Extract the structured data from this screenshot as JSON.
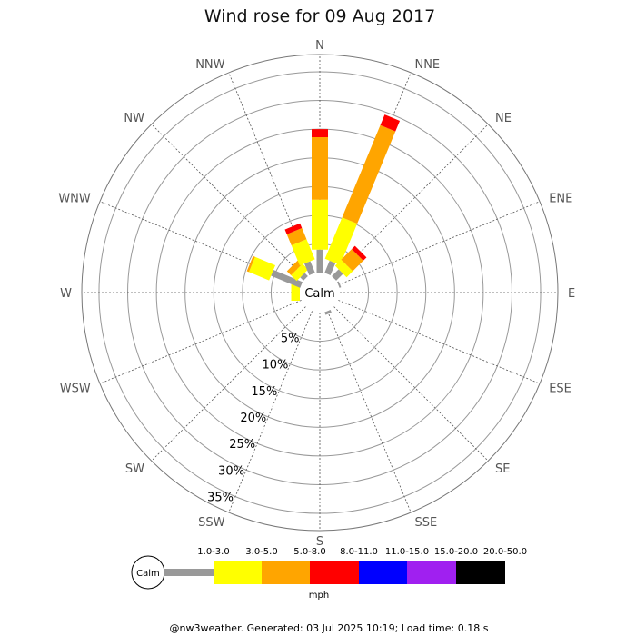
{
  "chart_data": {
    "type": "wind-rose",
    "title": "Wind rose for 09 Aug 2017",
    "center_label": "Calm",
    "directions": [
      "N",
      "NNE",
      "NE",
      "ENE",
      "E",
      "ESE",
      "SE",
      "SSE",
      "S",
      "SSW",
      "SW",
      "WSW",
      "W",
      "WNW",
      "NW",
      "NNW"
    ],
    "radial_unit": "percent",
    "radial_ticks": [
      5,
      10,
      15,
      20,
      25,
      30,
      35
    ],
    "radial_tick_labels": [
      "5%",
      "10%",
      "15%",
      "20%",
      "25%",
      "30%",
      "35%"
    ],
    "rmax": 38,
    "grid": true,
    "speed_bins": [
      "1.0-3.0",
      "3.0-5.0",
      "5.0-8.0",
      "8.0-11.0",
      "11.0-15.0",
      "15.0-20.0",
      "20.0-50.0"
    ],
    "speed_unit": "mph",
    "colors": [
      "#999999",
      "#ffff00",
      "#ffa500",
      "#ff0000",
      "#0000ff",
      "#a020f0",
      "#000000"
    ],
    "series": [
      {
        "direction": "N",
        "values": [
          4.0,
          8.7,
          10.9,
          1.4,
          0,
          0,
          0
        ]
      },
      {
        "direction": "NNE",
        "values": [
          2.3,
          7.8,
          17.4,
          2.0,
          0,
          0,
          0
        ]
      },
      {
        "direction": "NE",
        "values": [
          1.7,
          1.5,
          2.6,
          0.8,
          0,
          0,
          0
        ]
      },
      {
        "direction": "ENE",
        "values": [
          0.3,
          0,
          0,
          0,
          0,
          0,
          0
        ]
      },
      {
        "direction": "E",
        "values": [
          0,
          0,
          0,
          0,
          0,
          0,
          0
        ]
      },
      {
        "direction": "ESE",
        "values": [
          0,
          0,
          0,
          0,
          0,
          0,
          0
        ]
      },
      {
        "direction": "SE",
        "values": [
          0,
          0,
          0,
          0,
          0,
          0,
          0
        ]
      },
      {
        "direction": "SSE",
        "values": [
          0.5,
          0,
          0,
          0,
          0,
          0,
          0
        ]
      },
      {
        "direction": "S",
        "values": [
          0,
          0,
          0,
          0,
          0,
          0,
          0
        ]
      },
      {
        "direction": "SSW",
        "values": [
          0,
          0,
          0,
          0,
          0,
          0,
          0
        ]
      },
      {
        "direction": "SW",
        "values": [
          0,
          0,
          0,
          0,
          0,
          0,
          0
        ]
      },
      {
        "direction": "WSW",
        "values": [
          0,
          0,
          0,
          0,
          0,
          0,
          0
        ]
      },
      {
        "direction": "W",
        "values": [
          0,
          1.5,
          0,
          0,
          0,
          0,
          0
        ]
      },
      {
        "direction": "WNW",
        "values": [
          5.5,
          3.8,
          0.4,
          0,
          0,
          0,
          0
        ]
      },
      {
        "direction": "NW",
        "values": [
          0.8,
          1.4,
          1.0,
          0,
          0,
          0,
          0
        ]
      },
      {
        "direction": "NNW",
        "values": [
          2.2,
          3.8,
          2.1,
          0.9,
          0,
          0,
          0
        ]
      }
    ]
  },
  "footer": "@nw3weather. Generated: 03 Jul 2025 10:19; Load time: 0.18 s"
}
